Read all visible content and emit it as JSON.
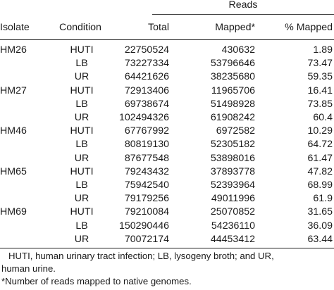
{
  "table": {
    "group_header": "Reads",
    "columns": [
      "Isolate",
      "Condition",
      "Total",
      "Mapped*",
      "% Mapped"
    ],
    "rows": [
      {
        "isolate": "HM26",
        "condition": "HUTI",
        "total": "22750524",
        "mapped": "430632",
        "pct": "1.89"
      },
      {
        "isolate": "",
        "condition": "LB",
        "total": "73227334",
        "mapped": "53796646",
        "pct": "73.47"
      },
      {
        "isolate": "",
        "condition": "UR",
        "total": "64421626",
        "mapped": "38235680",
        "pct": "59.35"
      },
      {
        "isolate": "HM27",
        "condition": "HUTI",
        "total": "72913406",
        "mapped": "11965706",
        "pct": "16.41"
      },
      {
        "isolate": "",
        "condition": "LB",
        "total": "69738674",
        "mapped": "51498928",
        "pct": "73.85"
      },
      {
        "isolate": "",
        "condition": "UR",
        "total": "102494326",
        "mapped": "61908242",
        "pct": "60.4"
      },
      {
        "isolate": "HM46",
        "condition": "HUTI",
        "total": "67767992",
        "mapped": "6972582",
        "pct": "10.29"
      },
      {
        "isolate": "",
        "condition": "LB",
        "total": "80819130",
        "mapped": "52305182",
        "pct": "64.72"
      },
      {
        "isolate": "",
        "condition": "UR",
        "total": "87677548",
        "mapped": "53898016",
        "pct": "61.47"
      },
      {
        "isolate": "HM65",
        "condition": "HUTI",
        "total": "79243432",
        "mapped": "37893778",
        "pct": "47.82"
      },
      {
        "isolate": "",
        "condition": "LB",
        "total": "75942540",
        "mapped": "52393964",
        "pct": "68.99"
      },
      {
        "isolate": "",
        "condition": "UR",
        "total": "79179256",
        "mapped": "49011996",
        "pct": "61.9"
      },
      {
        "isolate": "HM69",
        "condition": "HUTI",
        "total": "79210084",
        "mapped": "25070852",
        "pct": "31.65"
      },
      {
        "isolate": "",
        "condition": "LB",
        "total": "150290446",
        "mapped": "54236110",
        "pct": "36.09"
      },
      {
        "isolate": "",
        "condition": "UR",
        "total": "70072174",
        "mapped": "44453412",
        "pct": "63.44"
      }
    ]
  },
  "footnotes": {
    "abbrev_line1": "HUTI, human urinary tract infection; LB, lysogeny broth; and UR,",
    "abbrev_line2": "human urine.",
    "asterisk": "*Number of reads mapped to native genomes."
  }
}
